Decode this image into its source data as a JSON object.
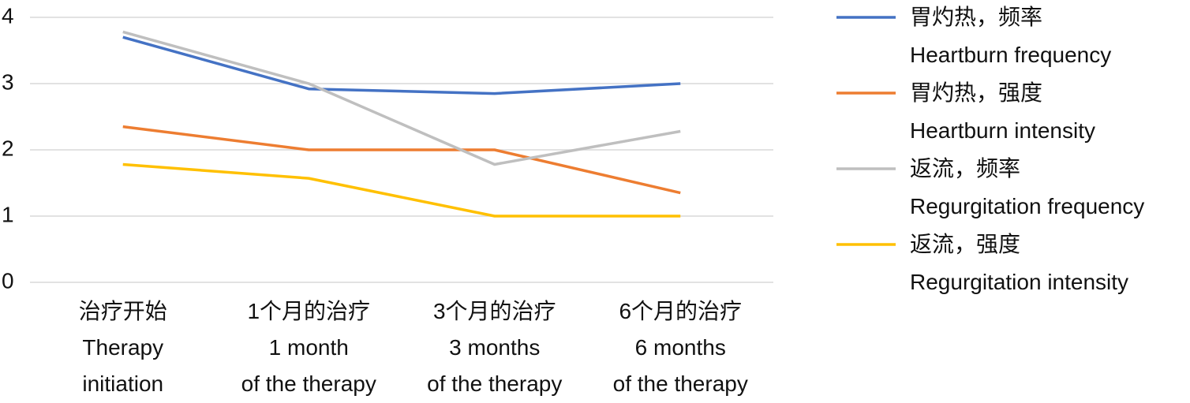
{
  "chart_data": {
    "type": "line",
    "categories": [
      "治疗开始\nTherapy\ninitiation",
      "1个月的治疗\n1 month\nof the therapy",
      "3个月的治疗\n3 months\nof the therapy",
      "6个月的治疗\n6 months\nof the therapy"
    ],
    "series": [
      {
        "name": "胃灼热，频率\nHeartburn frequency",
        "color": "#4472c4",
        "values": [
          3.7,
          2.92,
          2.85,
          3.0
        ]
      },
      {
        "name": "胃灼热，强度\nHeartburn intensity",
        "color": "#ed7d31",
        "values": [
          2.35,
          2.0,
          2.0,
          1.35
        ]
      },
      {
        "name": "返流，频率\nRegurgitation frequency",
        "color": "#bfbfbf",
        "values": [
          3.78,
          3.0,
          1.78,
          2.28
        ]
      },
      {
        "name": "返流，强度\nRegurgitation intensity",
        "color": "#ffc000",
        "values": [
          1.78,
          1.57,
          1.0,
          1.0
        ]
      }
    ],
    "ylim": [
      0,
      4
    ],
    "yticks": [
      0,
      1,
      2,
      3,
      4
    ],
    "grid": true,
    "legend": "right"
  }
}
